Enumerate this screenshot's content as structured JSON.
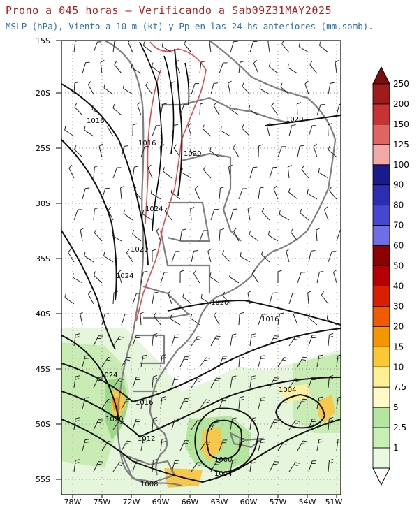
{
  "header": {
    "title": "Prono a 045 horas — Verificando a Sab09Z31MAY2025",
    "subtitle": "MSLP (hPa), Viento a 10 m (kt) y Pp en las 24 hs anteriores (mm,somb)."
  },
  "axes": {
    "lat_labels": [
      "15S",
      "20S",
      "25S",
      "30S",
      "35S",
      "40S",
      "45S",
      "50S",
      "55S"
    ],
    "lon_labels": [
      "78W",
      "75W",
      "72W",
      "69W",
      "66W",
      "63W",
      "60W",
      "57W",
      "54W",
      "51W"
    ]
  },
  "isobars": [
    {
      "value": "1016",
      "where": "north-west"
    },
    {
      "value": "1016",
      "where": "andes-north"
    },
    {
      "value": "1020",
      "where": "andes-central"
    },
    {
      "value": "1020",
      "where": "north-east"
    },
    {
      "value": "1024",
      "where": "andes"
    },
    {
      "value": "1020",
      "where": "coast-central"
    },
    {
      "value": "1024",
      "where": "pacific"
    },
    {
      "value": "1020",
      "where": "buenos-aires"
    },
    {
      "value": "1016",
      "where": "atlantic"
    },
    {
      "value": "1024",
      "where": "chile-south"
    },
    {
      "value": "1016",
      "where": "patagonia"
    },
    {
      "value": "1004",
      "where": "atlantic-south"
    },
    {
      "value": "1020",
      "where": "chile-far-south"
    },
    {
      "value": "1012",
      "where": "patagonia-south"
    },
    {
      "value": "1000",
      "where": "low-center"
    },
    {
      "value": "1004",
      "where": "low-south"
    },
    {
      "value": "1008",
      "where": "tierra-del-fuego"
    }
  ],
  "colorbar": {
    "labels": [
      "250",
      "200",
      "150",
      "125",
      "100",
      "90",
      "80",
      "70",
      "60",
      "50",
      "40",
      "30",
      "20",
      "15",
      "10",
      "7.5",
      "5",
      "2.5",
      "1"
    ],
    "colors": [
      "#a01c1c",
      "#c83232",
      "#e06464",
      "#f4a8a8",
      "#1a1a8c",
      "#2d2db4",
      "#4646d2",
      "#6e6ee6",
      "#8c0000",
      "#b40000",
      "#dc1e00",
      "#f05a00",
      "#f59600",
      "#fac832",
      "#fff096",
      "#fffac8",
      "#b4e6a0",
      "#c8f0b4",
      "#eafae2"
    ],
    "top_arrow_color": "#7a0c0c"
  }
}
